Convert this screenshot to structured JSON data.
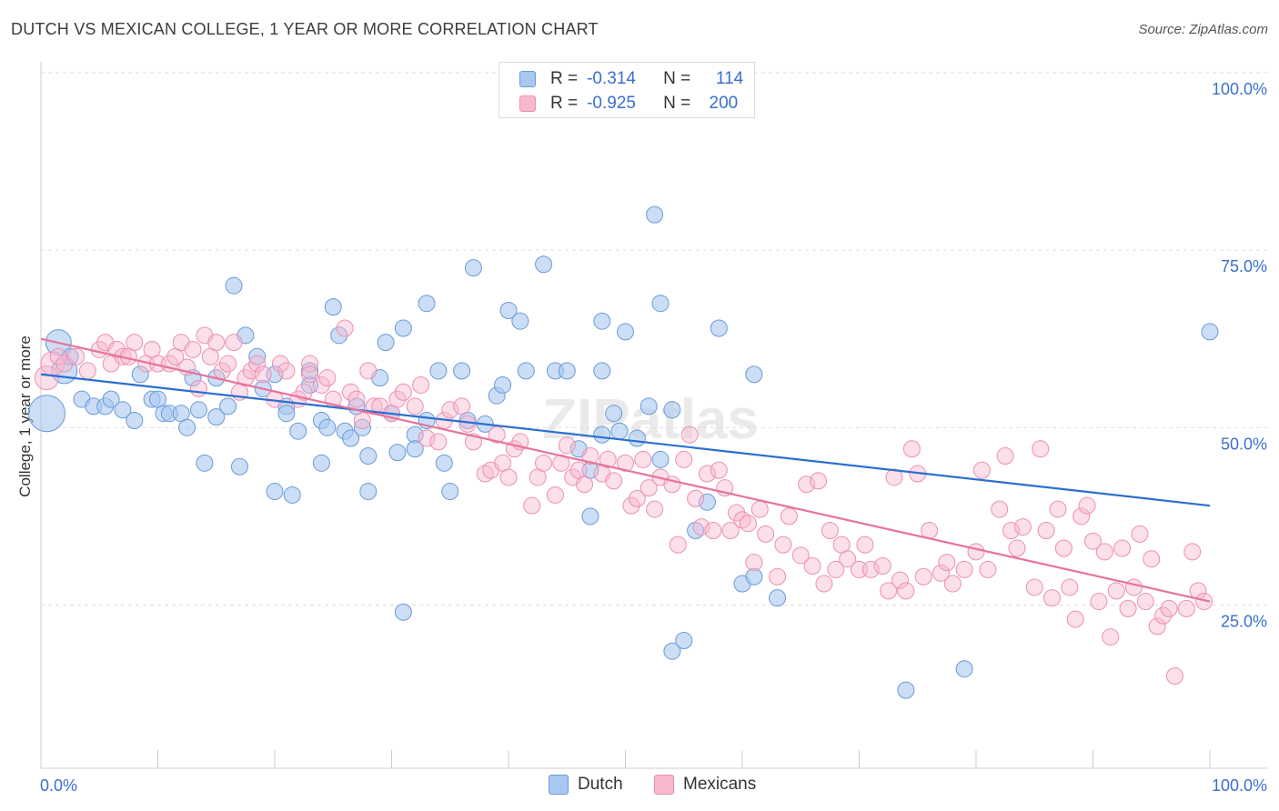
{
  "title": "DUTCH VS MEXICAN COLLEGE, 1 YEAR OR MORE CORRELATION CHART",
  "source": "Source: ZipAtlas.com",
  "colors": {
    "dutch_fill": "#a9c8f0",
    "dutch_stroke": "#6a9ad8",
    "dutch_line": "#2a6fd0",
    "mexicans_fill": "#f7b9ce",
    "mexicans_stroke": "#ec8fb0",
    "mexicans_line": "#e8739a",
    "tick_label": "#3a6fd0"
  },
  "legend": {
    "dutch": {
      "r_label": "R =",
      "r_value": "-0.314",
      "n_label": "N =",
      "n_value": "114"
    },
    "mexicans": {
      "r_label": "R =",
      "r_value": "-0.925",
      "n_label": "N =",
      "n_value": "200"
    }
  },
  "chart_data": {
    "type": "scatter",
    "title": "DUTCH VS MEXICAN COLLEGE, 1 YEAR OR MORE CORRELATION CHART",
    "xlabel": "",
    "ylabel": "College, 1 year or more",
    "xlim": [
      0,
      100
    ],
    "ylim": [
      2,
      100
    ],
    "x_tick_labels": [
      "0.0%",
      "100.0%"
    ],
    "y_tick_labels": [
      "25.0%",
      "50.0%",
      "75.0%",
      "100.0%"
    ],
    "y_ticks": [
      25,
      50,
      75,
      100
    ],
    "grid": "horizontal dashed",
    "legend_position": "top-center",
    "watermark": "ZIPatlas",
    "series": [
      {
        "name": "Dutch",
        "trend": {
          "x": [
            0,
            100
          ],
          "y": [
            57.5,
            39
          ]
        },
        "points": [
          [
            0.5,
            52
          ],
          [
            1.5,
            62
          ],
          [
            2,
            58
          ],
          [
            2.5,
            60
          ],
          [
            3.5,
            54
          ],
          [
            4.5,
            53
          ],
          [
            5.5,
            53
          ],
          [
            6,
            54
          ],
          [
            7,
            52.5
          ],
          [
            8,
            51
          ],
          [
            8.5,
            57.5
          ],
          [
            9.5,
            54
          ],
          [
            10,
            54
          ],
          [
            10.5,
            52
          ],
          [
            11,
            52
          ],
          [
            12,
            52
          ],
          [
            12.5,
            50
          ],
          [
            13,
            57
          ],
          [
            13.5,
            52.5
          ],
          [
            14,
            45
          ],
          [
            15,
            57
          ],
          [
            15,
            51.5
          ],
          [
            16,
            53
          ],
          [
            16.5,
            70
          ],
          [
            17,
            44.5
          ],
          [
            17.5,
            63
          ],
          [
            18.5,
            60
          ],
          [
            19,
            55.5
          ],
          [
            20,
            57.5
          ],
          [
            20,
            41
          ],
          [
            21,
            53
          ],
          [
            21,
            52
          ],
          [
            21.5,
            40.5
          ],
          [
            22,
            49.5
          ],
          [
            23,
            56
          ],
          [
            23,
            58
          ],
          [
            24,
            45
          ],
          [
            24,
            51
          ],
          [
            24.5,
            50
          ],
          [
            25,
            67
          ],
          [
            25.5,
            63
          ],
          [
            26,
            49.5
          ],
          [
            26.5,
            48.5
          ],
          [
            27,
            53
          ],
          [
            27.5,
            50
          ],
          [
            28,
            46
          ],
          [
            28,
            41
          ],
          [
            29,
            57
          ],
          [
            29.5,
            62
          ],
          [
            30,
            52
          ],
          [
            30.5,
            46.5
          ],
          [
            31,
            24
          ],
          [
            31,
            64
          ],
          [
            32,
            49
          ],
          [
            32,
            47
          ],
          [
            33,
            51
          ],
          [
            33,
            67.5
          ],
          [
            34,
            58
          ],
          [
            34.5,
            45
          ],
          [
            35,
            41
          ],
          [
            36,
            58
          ],
          [
            36.5,
            51
          ],
          [
            37,
            72.5
          ],
          [
            38,
            50.5
          ],
          [
            39,
            54.5
          ],
          [
            39.5,
            56
          ],
          [
            40,
            66.5
          ],
          [
            41,
            65
          ],
          [
            41.5,
            58
          ],
          [
            43,
            73
          ],
          [
            44,
            58
          ],
          [
            45,
            58
          ],
          [
            46,
            47
          ],
          [
            47,
            44
          ],
          [
            47,
            37.5
          ],
          [
            48,
            58
          ],
          [
            48,
            49
          ],
          [
            48,
            65
          ],
          [
            49,
            52
          ],
          [
            49.5,
            49.5
          ],
          [
            50,
            63.5
          ],
          [
            51,
            48.5
          ],
          [
            52,
            53
          ],
          [
            52.5,
            80
          ],
          [
            53,
            67.5
          ],
          [
            53,
            45.5
          ],
          [
            54,
            52.5
          ],
          [
            54,
            18.5
          ],
          [
            55,
            20
          ],
          [
            56,
            35.5
          ],
          [
            57,
            39.5
          ],
          [
            58,
            64
          ],
          [
            60,
            28
          ],
          [
            61,
            29
          ],
          [
            61,
            57.5
          ],
          [
            63,
            26
          ],
          [
            74,
            13
          ],
          [
            79,
            16
          ],
          [
            100,
            63.5
          ]
        ],
        "sizes_note": "leftmost points are larger"
      },
      {
        "name": "Mexicans",
        "trend": {
          "x": [
            0,
            100
          ],
          "y": [
            62.5,
            25.5
          ]
        },
        "points": [
          [
            0.5,
            57
          ],
          [
            1,
            59
          ],
          [
            1.5,
            60
          ],
          [
            2,
            59
          ],
          [
            3,
            60
          ],
          [
            4,
            58
          ],
          [
            5,
            61
          ],
          [
            5.5,
            62
          ],
          [
            6,
            59
          ],
          [
            6.5,
            61
          ],
          [
            7,
            60
          ],
          [
            7.5,
            60
          ],
          [
            8,
            62
          ],
          [
            9,
            59
          ],
          [
            9.5,
            61
          ],
          [
            10,
            59
          ],
          [
            11,
            59
          ],
          [
            11.5,
            60
          ],
          [
            12,
            62
          ],
          [
            12.5,
            58.5
          ],
          [
            13,
            61
          ],
          [
            13.5,
            55.5
          ],
          [
            14,
            63
          ],
          [
            14.5,
            60
          ],
          [
            15,
            62
          ],
          [
            15.5,
            58
          ],
          [
            16,
            59
          ],
          [
            16.5,
            62
          ],
          [
            17,
            55
          ],
          [
            17.5,
            57
          ],
          [
            18,
            58
          ],
          [
            18.5,
            59
          ],
          [
            19,
            57.5
          ],
          [
            20,
            54
          ],
          [
            20.5,
            59
          ],
          [
            21,
            58
          ],
          [
            22,
            54
          ],
          [
            22.5,
            55
          ],
          [
            23,
            59
          ],
          [
            23,
            57.5
          ],
          [
            24,
            56
          ],
          [
            24.5,
            57
          ],
          [
            25,
            54
          ],
          [
            26,
            64
          ],
          [
            26.5,
            55
          ],
          [
            27,
            54
          ],
          [
            27.5,
            51
          ],
          [
            28,
            58
          ],
          [
            28.5,
            53
          ],
          [
            29,
            53
          ],
          [
            30,
            52
          ],
          [
            30.5,
            54
          ],
          [
            31,
            55
          ],
          [
            32,
            53
          ],
          [
            32.5,
            56
          ],
          [
            33,
            48.5
          ],
          [
            34,
            48
          ],
          [
            34.5,
            51
          ],
          [
            35,
            52.5
          ],
          [
            36,
            53
          ],
          [
            36.5,
            50.5
          ],
          [
            37,
            48
          ],
          [
            38,
            43.5
          ],
          [
            38.5,
            44
          ],
          [
            39,
            49
          ],
          [
            39.5,
            45
          ],
          [
            40,
            43
          ],
          [
            40.5,
            47
          ],
          [
            41,
            48
          ],
          [
            42,
            39
          ],
          [
            42.5,
            43
          ],
          [
            43,
            45
          ],
          [
            44,
            40.5
          ],
          [
            44.5,
            45
          ],
          [
            45,
            47.5
          ],
          [
            45.5,
            43
          ],
          [
            46,
            44
          ],
          [
            46.5,
            42
          ],
          [
            47,
            46
          ],
          [
            48,
            43.5
          ],
          [
            48.5,
            45.5
          ],
          [
            49,
            42.5
          ],
          [
            50,
            45
          ],
          [
            50.5,
            39
          ],
          [
            51,
            40
          ],
          [
            51.5,
            45.5
          ],
          [
            52,
            41.5
          ],
          [
            52.5,
            38.5
          ],
          [
            53,
            43
          ],
          [
            54,
            42
          ],
          [
            54.5,
            33.5
          ],
          [
            55,
            45.5
          ],
          [
            55.5,
            49
          ],
          [
            56,
            40
          ],
          [
            56.5,
            36
          ],
          [
            57,
            43.5
          ],
          [
            57.5,
            35.5
          ],
          [
            58,
            44
          ],
          [
            58.5,
            41.5
          ],
          [
            59,
            35.5
          ],
          [
            59.5,
            38
          ],
          [
            60,
            37
          ],
          [
            60.5,
            36.5
          ],
          [
            61,
            31
          ],
          [
            61.5,
            38.5
          ],
          [
            62,
            35
          ],
          [
            63,
            29
          ],
          [
            63.5,
            33.5
          ],
          [
            64,
            37.5
          ],
          [
            65,
            32
          ],
          [
            65.5,
            42
          ],
          [
            66,
            30.5
          ],
          [
            66.5,
            42.5
          ],
          [
            67,
            28
          ],
          [
            67.5,
            35.5
          ],
          [
            68,
            30
          ],
          [
            68.5,
            33.5
          ],
          [
            69,
            31.5
          ],
          [
            70,
            30
          ],
          [
            70.5,
            33.5
          ],
          [
            71,
            30
          ],
          [
            72,
            30.5
          ],
          [
            72.5,
            27
          ],
          [
            73,
            43
          ],
          [
            73.5,
            28.5
          ],
          [
            74,
            27
          ],
          [
            74.5,
            47
          ],
          [
            75,
            43.5
          ],
          [
            75.5,
            29
          ],
          [
            76,
            35.5
          ],
          [
            77,
            29.5
          ],
          [
            77.5,
            31
          ],
          [
            78,
            28
          ],
          [
            79,
            30
          ],
          [
            80,
            32.5
          ],
          [
            80.5,
            44
          ],
          [
            81,
            30
          ],
          [
            82,
            38.5
          ],
          [
            82.5,
            46
          ],
          [
            83,
            35.5
          ],
          [
            83.5,
            33
          ],
          [
            84,
            36
          ],
          [
            85,
            27.5
          ],
          [
            85.5,
            47
          ],
          [
            86,
            35.5
          ],
          [
            86.5,
            26
          ],
          [
            87,
            38.5
          ],
          [
            87.5,
            33
          ],
          [
            88,
            27.5
          ],
          [
            88.5,
            23
          ],
          [
            89,
            37.5
          ],
          [
            89.5,
            39
          ],
          [
            90,
            34
          ],
          [
            90.5,
            25.5
          ],
          [
            91,
            32.5
          ],
          [
            91.5,
            20.5
          ],
          [
            92,
            27
          ],
          [
            92.5,
            33
          ],
          [
            93,
            24.5
          ],
          [
            93.5,
            27.5
          ],
          [
            94,
            35
          ],
          [
            94.5,
            25.5
          ],
          [
            95,
            31.5
          ],
          [
            95.5,
            22
          ],
          [
            96,
            23.5
          ],
          [
            96.5,
            24.5
          ],
          [
            97,
            15
          ],
          [
            98,
            24.5
          ],
          [
            98.5,
            32.5
          ],
          [
            99,
            27
          ],
          [
            99.5,
            25.5
          ]
        ]
      }
    ]
  },
  "bottom_legend": {
    "dutch": "Dutch",
    "mexicans": "Mexicans"
  }
}
